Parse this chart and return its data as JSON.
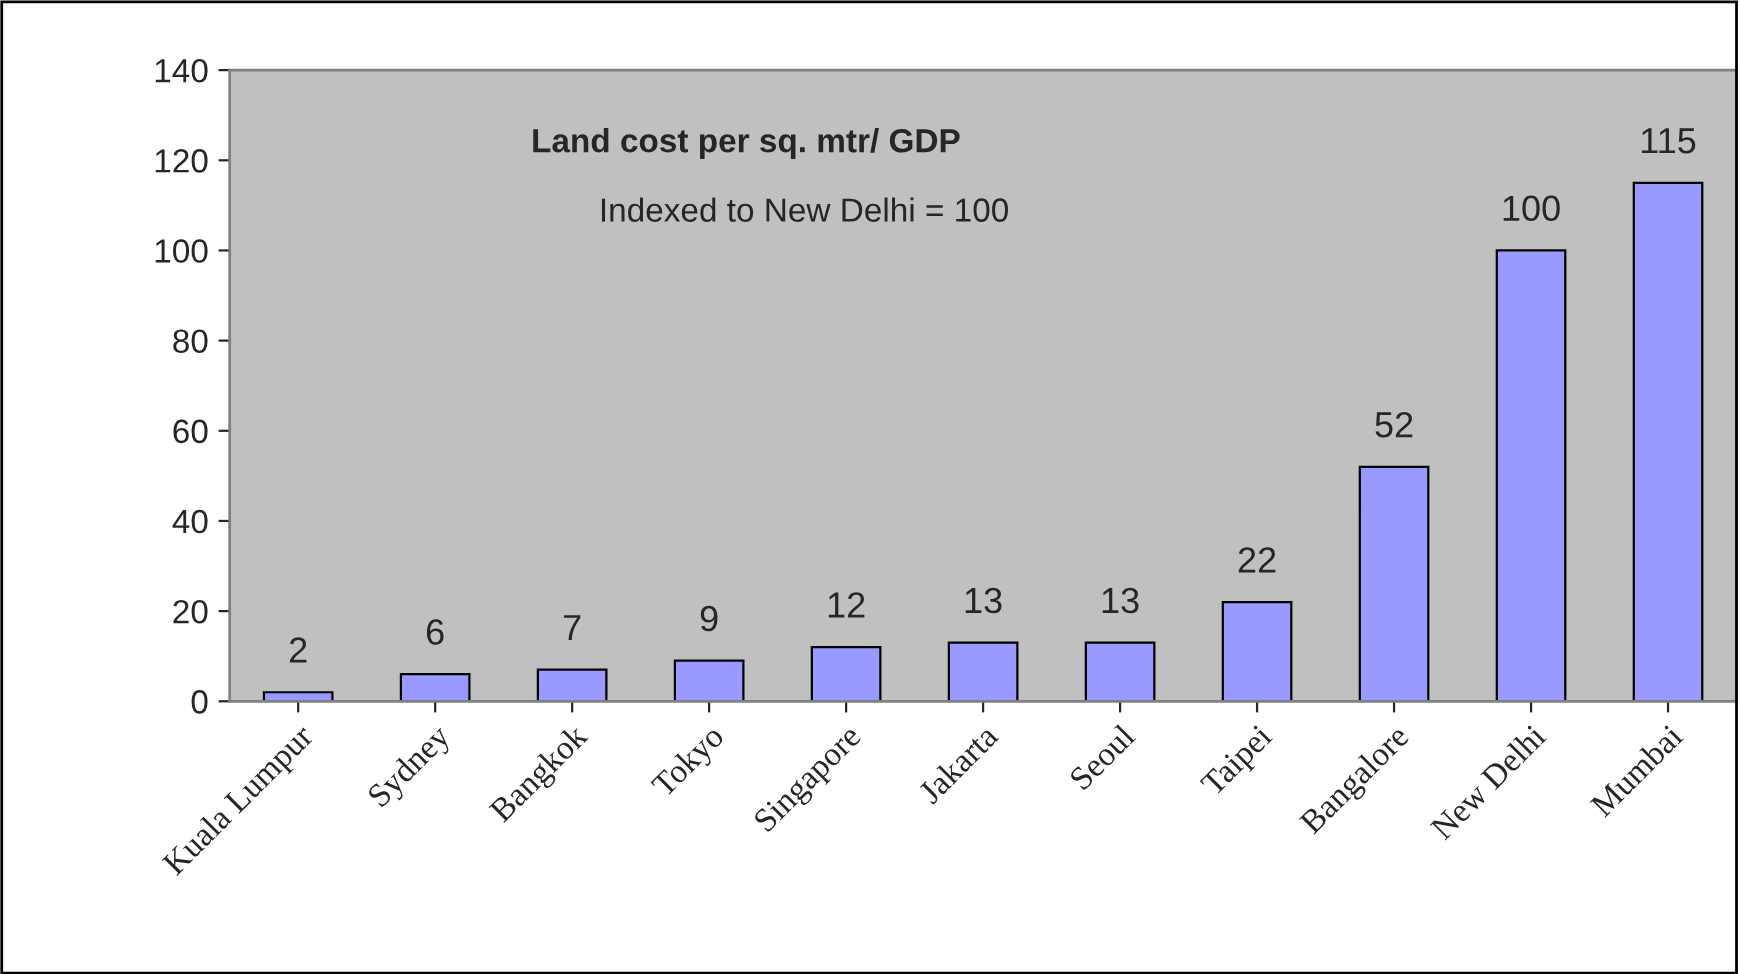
{
  "chart_data": {
    "type": "bar",
    "title": "Land cost per sq. mtr/ GDP",
    "subtitle": "Indexed to New Delhi = 100",
    "categories": [
      "Kuala Lumpur",
      "Sydney",
      "Bangkok",
      "Tokyo",
      "Singapore",
      "Jakarta",
      "Seoul",
      "Taipei",
      "Bangalore",
      "New Delhi",
      "Mumbai"
    ],
    "values": [
      2,
      6,
      7,
      9,
      12,
      13,
      13,
      22,
      52,
      100,
      115
    ],
    "color": "#9999ff",
    "ylim": [
      0,
      140
    ],
    "yticks": [
      0,
      20,
      40,
      60,
      80,
      100,
      120,
      140
    ],
    "data_labels": true,
    "grid": false,
    "legend": false
  }
}
